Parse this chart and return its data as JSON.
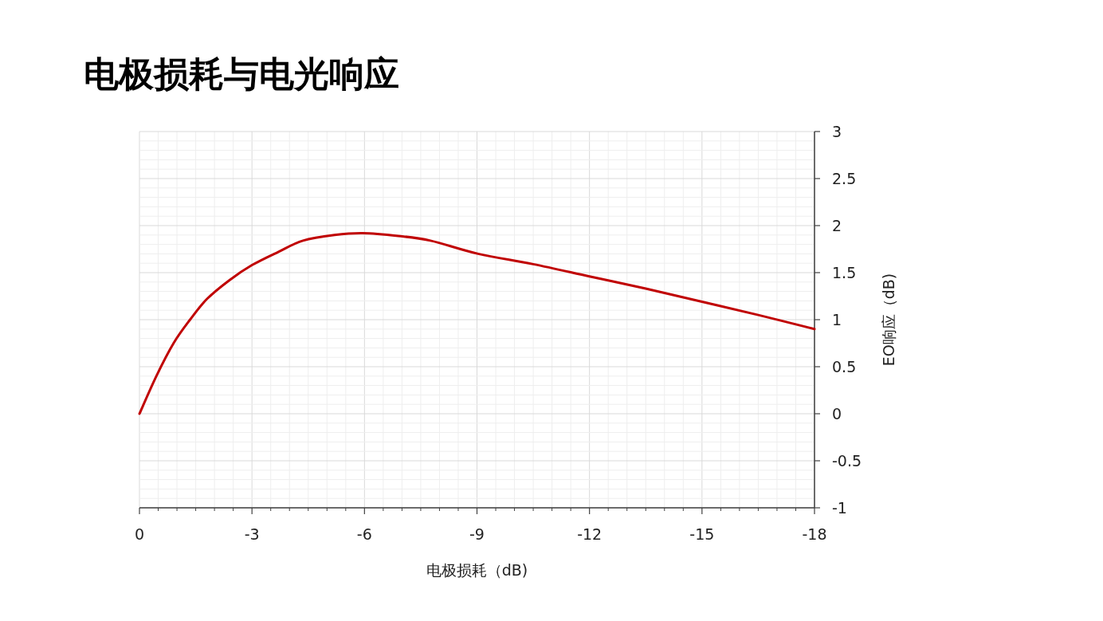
{
  "chart_data": {
    "type": "line",
    "title": "电极损耗与电光响应",
    "xlabel": "电极损耗（dB)",
    "ylabel": "EO响应（dB)",
    "x": [
      0,
      -0.45,
      -0.91,
      -1.35,
      -1.8,
      -2.4,
      -3,
      -3.7,
      -4.36,
      -5.2,
      -5.95,
      -6.9,
      -7.76,
      -9.03,
      -10.5,
      -12,
      -13.5,
      -15,
      -16.5,
      -18
    ],
    "series": [
      {
        "color": "#c00000",
        "values": [
          0,
          0.4,
          0.75,
          1.0,
          1.22,
          1.42,
          1.58,
          1.72,
          1.84,
          1.9,
          1.92,
          1.89,
          1.84,
          1.7,
          1.59,
          1.46,
          1.33,
          1.19,
          1.05,
          0.9
        ]
      }
    ],
    "xlim": [
      0,
      -18
    ],
    "ylim": [
      -1,
      3
    ],
    "xticks": [
      0,
      -3,
      -6,
      -9,
      -12,
      -15,
      -18
    ],
    "yticks": [
      -1,
      -0.5,
      0,
      0.5,
      1,
      1.5,
      2,
      2.5,
      3
    ],
    "grid": true
  }
}
